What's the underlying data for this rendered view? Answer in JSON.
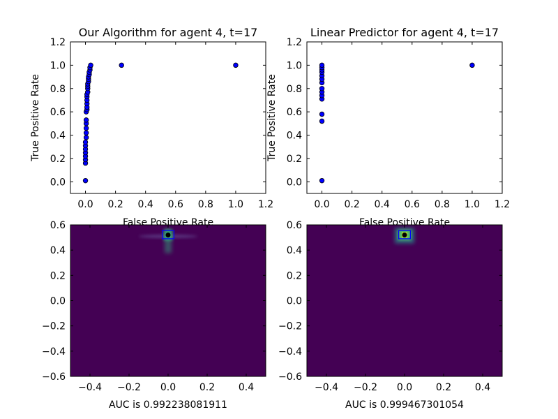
{
  "chart_data": [
    {
      "type": "scatter",
      "title": "Our Algorithm for agent 4, t=17",
      "xlabel": "False Positive Rate",
      "ylabel": "True Positive Rate",
      "xlim": [
        -0.1,
        1.2
      ],
      "ylim": [
        -0.1,
        1.2
      ],
      "xticks": [
        0.0,
        0.2,
        0.4,
        0.6,
        0.8,
        1.0,
        1.2
      ],
      "yticks": [
        0.0,
        0.2,
        0.4,
        0.6,
        0.8,
        1.0,
        1.2
      ],
      "xtick_labels": [
        "0.0",
        "0.2",
        "0.4",
        "0.6",
        "0.8",
        "1.0",
        "1.2"
      ],
      "ytick_labels": [
        "0.0",
        "0.2",
        "0.4",
        "0.6",
        "0.8",
        "1.0",
        "1.2"
      ],
      "marker_color": "#0000ff",
      "points": [
        [
          0.0,
          0.01
        ],
        [
          0.0,
          0.16
        ],
        [
          0.0,
          0.19
        ],
        [
          0.0,
          0.22
        ],
        [
          0.0,
          0.25
        ],
        [
          0.0,
          0.28
        ],
        [
          0.0,
          0.31
        ],
        [
          0.0,
          0.34
        ],
        [
          0.005,
          0.38
        ],
        [
          0.005,
          0.42
        ],
        [
          0.005,
          0.46
        ],
        [
          0.005,
          0.5
        ],
        [
          0.005,
          0.53
        ],
        [
          0.005,
          0.6
        ],
        [
          0.01,
          0.62
        ],
        [
          0.01,
          0.64
        ],
        [
          0.01,
          0.67
        ],
        [
          0.01,
          0.7
        ],
        [
          0.01,
          0.73
        ],
        [
          0.01,
          0.75
        ],
        [
          0.015,
          0.77
        ],
        [
          0.015,
          0.8
        ],
        [
          0.015,
          0.82
        ],
        [
          0.015,
          0.84
        ],
        [
          0.02,
          0.86
        ],
        [
          0.02,
          0.88
        ],
        [
          0.02,
          0.9
        ],
        [
          0.025,
          0.92
        ],
        [
          0.025,
          0.94
        ],
        [
          0.03,
          0.96
        ],
        [
          0.03,
          0.98
        ],
        [
          0.035,
          1.0
        ],
        [
          0.24,
          1.0
        ],
        [
          1.0,
          1.0
        ]
      ]
    },
    {
      "type": "scatter",
      "title": "Linear Predictor for agent 4, t=17",
      "xlabel": "False Positive Rate",
      "ylabel": "True Positive Rate",
      "xlim": [
        -0.1,
        1.2
      ],
      "ylim": [
        -0.1,
        1.2
      ],
      "xticks": [
        0.0,
        0.2,
        0.4,
        0.6,
        0.8,
        1.0,
        1.2
      ],
      "yticks": [
        0.0,
        0.2,
        0.4,
        0.6,
        0.8,
        1.0,
        1.2
      ],
      "xtick_labels": [
        "0.0",
        "0.2",
        "0.4",
        "0.6",
        "0.8",
        "1.0",
        "1.2"
      ],
      "ytick_labels": [
        "0.0",
        "0.2",
        "0.4",
        "0.6",
        "0.8",
        "1.0",
        "1.2"
      ],
      "marker_color": "#0000ff",
      "points": [
        [
          0.0,
          0.01
        ],
        [
          0.0,
          0.52
        ],
        [
          0.0,
          0.58
        ],
        [
          0.0,
          0.71
        ],
        [
          0.0,
          0.74
        ],
        [
          0.0,
          0.77
        ],
        [
          0.0,
          0.8
        ],
        [
          0.0,
          0.85
        ],
        [
          0.0,
          0.88
        ],
        [
          0.0,
          0.91
        ],
        [
          0.0,
          0.94
        ],
        [
          0.0,
          0.96
        ],
        [
          0.0,
          0.98
        ],
        [
          0.0,
          1.0
        ],
        [
          1.0,
          1.0
        ]
      ]
    },
    {
      "type": "heatmap",
      "xlabel": "AUC is 0.992238081911",
      "xlim": [
        -0.5,
        0.5
      ],
      "ylim": [
        -0.6,
        0.6
      ],
      "xticks": [
        -0.4,
        -0.2,
        0.0,
        0.2,
        0.4
      ],
      "yticks": [
        -0.6,
        -0.4,
        -0.2,
        0.0,
        0.2,
        0.4,
        0.6
      ],
      "xtick_labels": [
        "−0.4",
        "−0.2",
        "0.0",
        "0.2",
        "0.4"
      ],
      "ytick_labels": [
        "−0.6",
        "−0.4",
        "−0.2",
        "0.0",
        "0.2",
        "0.4",
        "0.6"
      ],
      "background_color": "#440154",
      "highlight_color": "#2fb47c",
      "peak": [
        0.0,
        0.52
      ],
      "box": [
        -0.03,
        0.49,
        0.03,
        0.555
      ],
      "box_color": "#0000ff"
    },
    {
      "type": "heatmap",
      "xlabel": "AUC is 0.999467301054",
      "xlim": [
        -0.5,
        0.5
      ],
      "ylim": [
        -0.6,
        0.6
      ],
      "xticks": [
        -0.4,
        -0.2,
        0.0,
        0.2,
        0.4
      ],
      "yticks": [
        -0.6,
        -0.4,
        -0.2,
        0.0,
        0.2,
        0.4,
        0.6
      ],
      "xtick_labels": [
        "−0.4",
        "−0.2",
        "0.0",
        "0.2",
        "0.4"
      ],
      "ytick_labels": [
        "−0.6",
        "−0.4",
        "−0.2",
        "0.0",
        "0.2",
        "0.4",
        "0.6"
      ],
      "background_color": "#440154",
      "highlight_color": "#5ec962",
      "peak": [
        0.0,
        0.52
      ],
      "box": [
        -0.03,
        0.49,
        0.03,
        0.555
      ],
      "box_color": "#0000ff"
    }
  ]
}
